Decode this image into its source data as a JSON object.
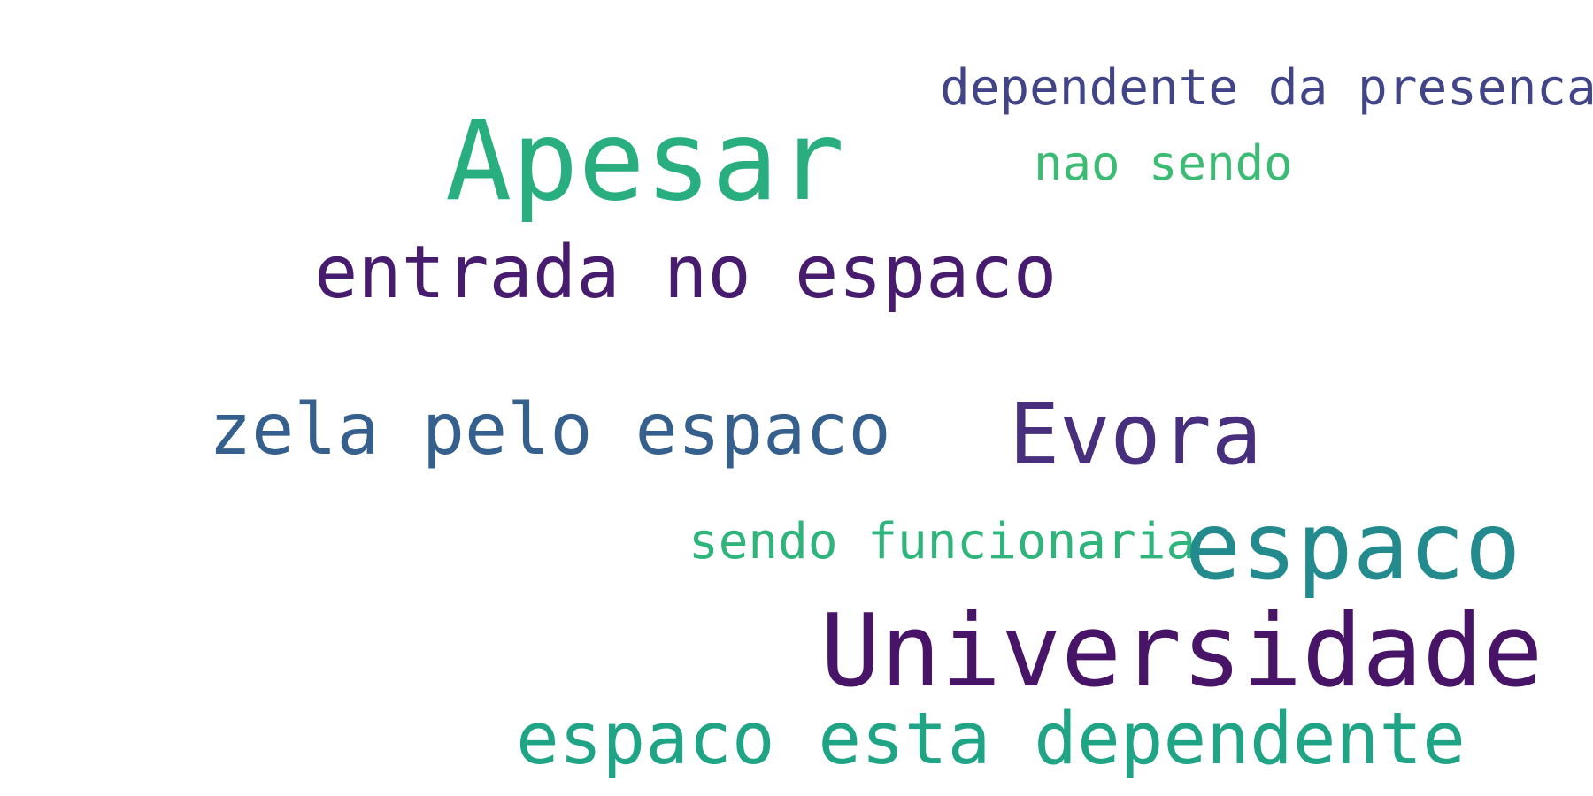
{
  "words": [
    {
      "id": "dependente-da-presenca",
      "text": "dependente da presenca",
      "color": "#414487"
    },
    {
      "id": "apesar",
      "text": "Apesar",
      "color": "#29AF7F"
    },
    {
      "id": "nao-sendo",
      "text": "nao sendo",
      "color": "#3CBB75"
    },
    {
      "id": "entrada-no-espaco",
      "text": "entrada no espaco",
      "color": "#471C6E"
    },
    {
      "id": "zela-pelo-espaco",
      "text": "zela pelo espaco",
      "color": "#355F8D"
    },
    {
      "id": "evora",
      "text": "Evora",
      "color": "#472F7D"
    },
    {
      "id": "sendo-funcionaria",
      "text": "sendo funcionaria",
      "color": "#2FB47C"
    },
    {
      "id": "espaco",
      "text": "espaco",
      "color": "#238A8D"
    },
    {
      "id": "universidade",
      "text": "Universidade",
      "color": "#481467"
    },
    {
      "id": "espaco-esta-dependente",
      "text": "espaco esta dependente",
      "color": "#20A486"
    }
  ]
}
